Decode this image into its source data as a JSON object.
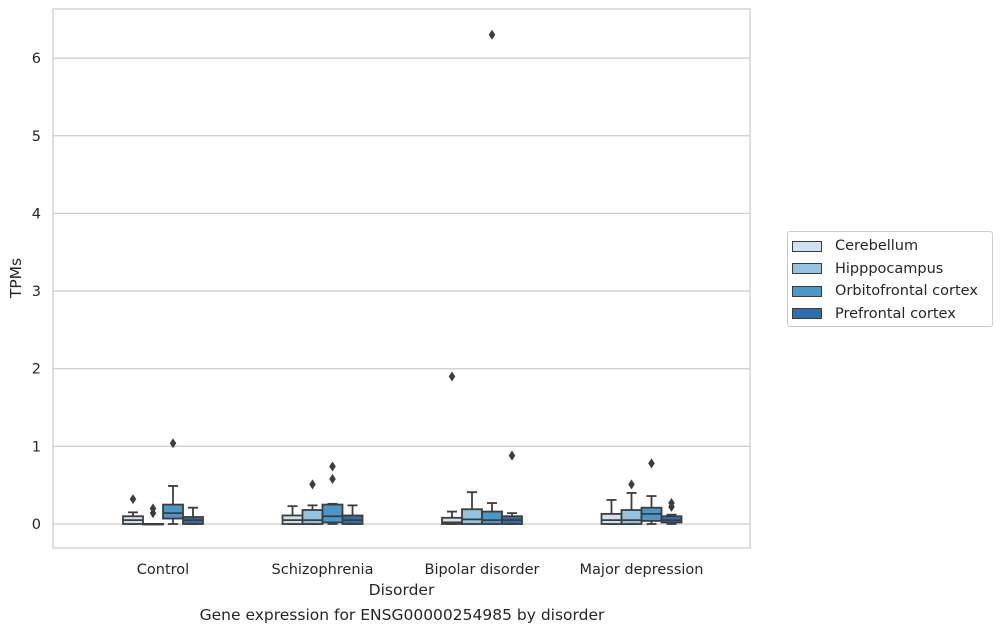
{
  "caption": "Gene expression for ENSG00000254985 by disorder",
  "chart_data": {
    "type": "box",
    "xlabel": "Disorder",
    "ylabel": "TPMs",
    "ylim": [
      -0.3,
      6.6
    ],
    "yticks": [
      "0",
      "1",
      "2",
      "3",
      "4",
      "5",
      "6"
    ],
    "grid": "horizontal",
    "legend_position": "right",
    "categories": [
      "Control",
      "Schizophrenia",
      "Bipolar disorder",
      "Major depression"
    ],
    "series": [
      {
        "name": "Cerebellum",
        "color": "#d0e1f2",
        "boxes": [
          {
            "whislo": 0.0,
            "q1": 0.0,
            "med": 0.05,
            "q3": 0.1,
            "whishi": 0.15,
            "fliers": [
              0.32
            ]
          },
          {
            "whislo": 0.0,
            "q1": 0.0,
            "med": 0.05,
            "q3": 0.11,
            "whishi": 0.23,
            "fliers": []
          },
          {
            "whislo": 0.0,
            "q1": 0.0,
            "med": 0.02,
            "q3": 0.08,
            "whishi": 0.16,
            "fliers": [
              1.9
            ]
          },
          {
            "whislo": 0.0,
            "q1": 0.0,
            "med": 0.05,
            "q3": 0.13,
            "whishi": 0.31,
            "fliers": []
          }
        ]
      },
      {
        "name": "Hipppocampus",
        "color": "#94c4df",
        "boxes": [
          {
            "whislo": 0.0,
            "q1": 0.0,
            "med": 0.0,
            "q3": 0.0,
            "whishi": 0.0,
            "fliers": [
              0.14,
              0.2
            ]
          },
          {
            "whislo": 0.0,
            "q1": 0.0,
            "med": 0.05,
            "q3": 0.18,
            "whishi": 0.24,
            "fliers": [
              0.51
            ]
          },
          {
            "whislo": 0.0,
            "q1": 0.0,
            "med": 0.06,
            "q3": 0.19,
            "whishi": 0.41,
            "fliers": []
          },
          {
            "whislo": 0.0,
            "q1": 0.0,
            "med": 0.05,
            "q3": 0.18,
            "whishi": 0.4,
            "fliers": [
              0.51
            ]
          }
        ]
      },
      {
        "name": "Orbitofrontal cortex",
        "color": "#4a98c9",
        "boxes": [
          {
            "whislo": 0.0,
            "q1": 0.07,
            "med": 0.14,
            "q3": 0.25,
            "whishi": 0.49,
            "fliers": [
              1.04
            ]
          },
          {
            "whislo": 0.0,
            "q1": 0.02,
            "med": 0.1,
            "q3": 0.25,
            "whishi": 0.26,
            "fliers": [
              0.58,
              0.74
            ]
          },
          {
            "whislo": 0.0,
            "q1": 0.0,
            "med": 0.05,
            "q3": 0.16,
            "whishi": 0.27,
            "fliers": [
              6.3
            ]
          },
          {
            "whislo": 0.0,
            "q1": 0.04,
            "med": 0.13,
            "q3": 0.21,
            "whishi": 0.36,
            "fliers": [
              0.78
            ]
          }
        ]
      },
      {
        "name": "Prefrontal cortex",
        "color": "#2e6fab",
        "boxes": [
          {
            "whislo": 0.0,
            "q1": 0.0,
            "med": 0.05,
            "q3": 0.09,
            "whishi": 0.21,
            "fliers": []
          },
          {
            "whislo": 0.0,
            "q1": 0.0,
            "med": 0.05,
            "q3": 0.11,
            "whishi": 0.24,
            "fliers": []
          },
          {
            "whislo": 0.0,
            "q1": 0.0,
            "med": 0.05,
            "q3": 0.1,
            "whishi": 0.14,
            "fliers": [
              0.88
            ]
          },
          {
            "whislo": 0.0,
            "q1": 0.02,
            "med": 0.05,
            "q3": 0.1,
            "whishi": 0.12,
            "fliers": [
              0.22,
              0.27
            ]
          }
        ]
      }
    ]
  }
}
